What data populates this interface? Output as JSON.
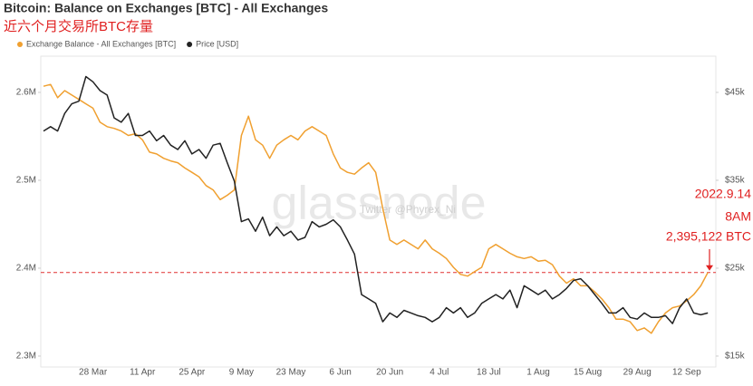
{
  "chart_data": {
    "type": "line",
    "title": "Bitcoin: Balance on Exchanges [BTC] - All Exchanges",
    "subtitle": "近六个月交易所BTC存量",
    "watermark": "glassnode",
    "watermark_credit": "Twitter @Phyrex_Ni",
    "annotation": [
      "2022.9.14",
      "8AM",
      "2,395,122 BTC"
    ],
    "reference_line": {
      "value": 2395122,
      "color": "#e03030"
    },
    "x": [
      null,
      null,
      null,
      null,
      null,
      null,
      null,
      "28 Mar",
      null,
      null,
      null,
      null,
      null,
      null,
      "11 Apr",
      null,
      null,
      null,
      null,
      null,
      null,
      "25 Apr",
      null,
      null,
      null,
      null,
      null,
      null,
      "9 May",
      null,
      null,
      null,
      null,
      null,
      null,
      "23 May",
      null,
      null,
      null,
      null,
      null,
      null,
      "6 Jun",
      null,
      null,
      null,
      null,
      null,
      null,
      "20 Jun",
      null,
      null,
      null,
      null,
      null,
      null,
      "4 Jul",
      null,
      null,
      null,
      null,
      null,
      null,
      "18 Jul",
      null,
      null,
      null,
      null,
      null,
      null,
      "1 Aug",
      null,
      null,
      null,
      null,
      null,
      null,
      "15 Aug",
      null,
      null,
      null,
      null,
      null,
      null,
      "29 Aug",
      null,
      null,
      null,
      null,
      null,
      null,
      "12 Sep",
      null,
      null,
      null
    ],
    "series": [
      {
        "name": "Exchange Balance - All Exchanges [BTC]",
        "color": "#f0a030",
        "values": [
          2607000,
          2609000,
          2594000,
          2602000,
          2597000,
          2592000,
          2587000,
          2582000,
          2566000,
          2561000,
          2559000,
          2556000,
          2551000,
          2553000,
          2546000,
          2532000,
          2530000,
          2525000,
          2522000,
          2520000,
          2514000,
          2509000,
          2504000,
          2494000,
          2489000,
          2478000,
          2483000,
          2489000,
          2551000,
          2573000,
          2546000,
          2540000,
          2525000,
          2540000,
          2546000,
          2551000,
          2546000,
          2556000,
          2561000,
          2556000,
          2551000,
          2530000,
          2514000,
          2509000,
          2507000,
          2514000,
          2520000,
          2509000,
          2468000,
          2432000,
          2427000,
          2432000,
          2427000,
          2422000,
          2432000,
          2422000,
          2417000,
          2411000,
          2401000,
          2393000,
          2391000,
          2396000,
          2401000,
          2422000,
          2427000,
          2422000,
          2417000,
          2413000,
          2411000,
          2413000,
          2408000,
          2409000,
          2404000,
          2391000,
          2383000,
          2388000,
          2380000,
          2380000,
          2373000,
          2365000,
          2355000,
          2342000,
          2342000,
          2339000,
          2329000,
          2332000,
          2326000,
          2339000,
          2349000,
          2355000,
          2357000,
          2363000,
          2370000,
          2380000,
          2395122
        ]
      },
      {
        "name": "Price [USD]",
        "color": "#222222",
        "axis": "y2",
        "values": [
          40600,
          41100,
          40600,
          42600,
          43700,
          44000,
          46800,
          46200,
          45200,
          44700,
          42100,
          41600,
          42600,
          40100,
          40100,
          40600,
          39500,
          40100,
          39000,
          38500,
          39500,
          38000,
          38500,
          37500,
          39000,
          39200,
          37000,
          34900,
          30300,
          30600,
          29200,
          30800,
          28700,
          29700,
          28700,
          29200,
          28200,
          28500,
          30300,
          29700,
          30000,
          30500,
          29700,
          28200,
          26600,
          22000,
          21500,
          21000,
          18900,
          19900,
          19400,
          20200,
          19900,
          19600,
          19400,
          18900,
          19400,
          20500,
          19900,
          20500,
          19400,
          19900,
          21000,
          21500,
          22000,
          21500,
          22500,
          20500,
          23000,
          22500,
          22000,
          22500,
          21500,
          22000,
          22700,
          23600,
          23800,
          23000,
          22000,
          21000,
          19900,
          19900,
          20500,
          19400,
          19200,
          19900,
          19400,
          19400,
          19600,
          18700,
          20500,
          21500,
          19900,
          19700,
          19900
        ]
      }
    ],
    "ylim": [
      2287600,
      2641200
    ],
    "yticks": [
      {
        "value": 2300000,
        "label": "2.3M"
      },
      {
        "value": 2400000,
        "label": "2.4M"
      },
      {
        "value": 2500000,
        "label": "2.5M"
      },
      {
        "value": 2600000,
        "label": "2.6M"
      }
    ],
    "y2lim": [
      13760,
      49120
    ],
    "y2ticks": [
      {
        "value": 15000,
        "label": "$15k"
      },
      {
        "value": 25000,
        "label": "$25k"
      },
      {
        "value": 35000,
        "label": "$35k"
      },
      {
        "value": 45000,
        "label": "$45k"
      }
    ],
    "grid": false
  }
}
